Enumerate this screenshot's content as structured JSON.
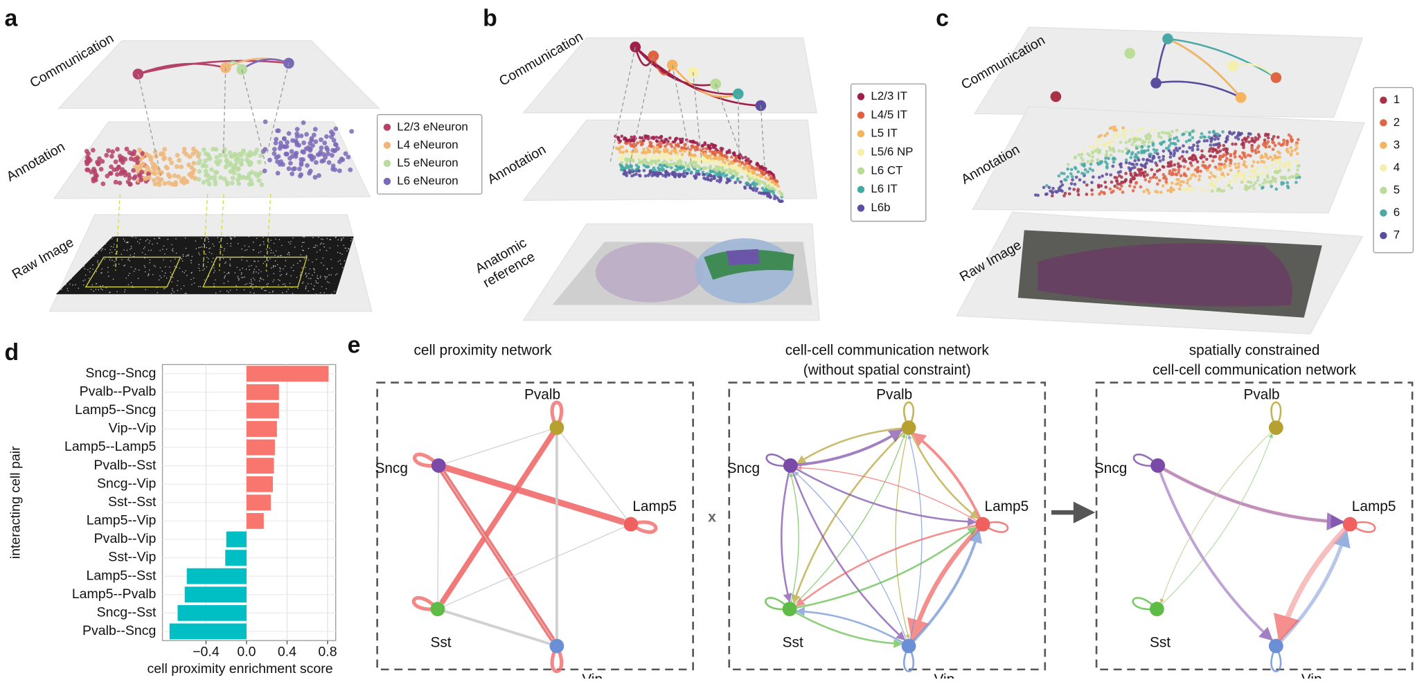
{
  "panel_labels": [
    "a",
    "b",
    "c",
    "d",
    "e"
  ],
  "panel_a": {
    "layers": [
      [
        "Communication"
      ],
      [
        "Annotation"
      ],
      [
        "Raw Image"
      ]
    ],
    "legend": [
      {
        "name": "L2/3 eNeuron",
        "color": "#b5426a"
      },
      {
        "name": "L4 eNeuron",
        "color": "#f0b77a"
      },
      {
        "name": "L5 eNeuron",
        "color": "#b8dca0"
      },
      {
        "name": "L6 eNeuron",
        "color": "#7b68b8"
      }
    ]
  },
  "panel_b": {
    "layers": [
      [
        "Communication"
      ],
      [
        "Annotation"
      ],
      [
        "Anatomic",
        "reference"
      ]
    ],
    "legend": [
      {
        "name": "L2/3 IT",
        "color": "#9e1f4a"
      },
      {
        "name": "L4/5 IT",
        "color": "#e0603f"
      },
      {
        "name": "L5 IT",
        "color": "#f5b35e"
      },
      {
        "name": "L5/6 NP",
        "color": "#f6f0a8"
      },
      {
        "name": "L6 CT",
        "color": "#b8dc96"
      },
      {
        "name": "L6 IT",
        "color": "#43a9a5"
      },
      {
        "name": "L6b",
        "color": "#5c4fa0"
      }
    ]
  },
  "panel_c": {
    "layers": [
      [
        "Communication"
      ],
      [
        "Annotation"
      ],
      [
        "Raw Image"
      ]
    ],
    "legend": [
      {
        "name": "1",
        "color": "#a8324a"
      },
      {
        "name": "2",
        "color": "#e06545"
      },
      {
        "name": "3",
        "color": "#f5b460"
      },
      {
        "name": "4",
        "color": "#f3efae"
      },
      {
        "name": "5",
        "color": "#bcdc98"
      },
      {
        "name": "6",
        "color": "#4aa9a6"
      },
      {
        "name": "7",
        "color": "#5a4c9e"
      }
    ]
  },
  "chart_data": {
    "type": "barh",
    "categories": [
      "Sncg--Sncg",
      "Pvalb--Pvalb",
      "Lamp5--Sncg",
      "Vip--Vip",
      "Lamp5--Lamp5",
      "Pvalb--Sst",
      "Sncg--Vip",
      "Sst--Sst",
      "Lamp5--Vip",
      "Pvalb--Vip",
      "Sst--Vip",
      "Lamp5--Sst",
      "Lamp5--Pvalb",
      "Sncg--Sst",
      "Pvalb--Sncg"
    ],
    "values": [
      0.81,
      0.32,
      0.32,
      0.3,
      0.28,
      0.27,
      0.26,
      0.24,
      0.17,
      -0.2,
      -0.21,
      -0.59,
      -0.61,
      -0.68,
      -0.76
    ],
    "positive_color": "#f8766d",
    "negative_color": "#00bfc4",
    "xlim": [
      -0.83,
      0.88
    ],
    "xticks": [
      {
        "value": -0.4,
        "label": "−0.4"
      },
      {
        "value": 0,
        "label": "0.0"
      },
      0.4,
      0.8
    ],
    "grid": true,
    "x_label": "cell proximity enrichment score",
    "y_label": "interacting cell pair"
  },
  "panel_e": {
    "operator": "x",
    "networks": [
      {
        "title": [
          "cell proximity network"
        ],
        "nodes": [
          "Pvalb",
          "Sncg",
          "Lamp5",
          "Sst",
          "Vip"
        ]
      },
      {
        "title": [
          "cell-cell communication network",
          "(without spatial constraint)"
        ],
        "nodes": [
          "Pvalb",
          "Sncg",
          "Lamp5",
          "Sst",
          "Vip"
        ]
      },
      {
        "title": [
          "spatially constrained",
          "cell-cell communication network"
        ],
        "nodes": [
          "Pvalb",
          "Sncg",
          "Lamp5",
          "Sst",
          "Vip"
        ]
      }
    ]
  }
}
